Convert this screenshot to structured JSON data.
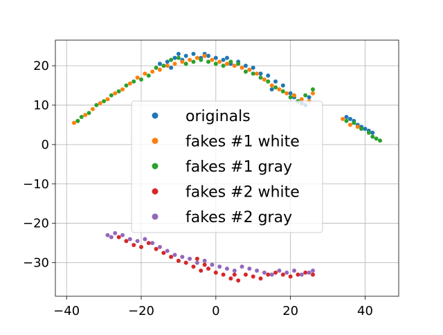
{
  "chart_data": {
    "type": "scatter",
    "title": "",
    "xlabel": "",
    "ylabel": "",
    "xlim": [
      -43,
      49
    ],
    "ylim": [
      -38.5,
      26.5
    ],
    "grid": true,
    "legend_position": "center",
    "x_ticks": [
      "−40",
      "−20",
      "0",
      "20",
      "40"
    ],
    "y_ticks": [
      "−30",
      "−20",
      "−10",
      "0",
      "10",
      "20"
    ],
    "x_tick_values": [
      -40,
      -20,
      0,
      20,
      40
    ],
    "y_tick_values": [
      -30,
      -20,
      -10,
      0,
      10,
      20
    ],
    "series": [
      {
        "name": "originals",
        "color": "#1f77b4",
        "points": [
          [
            -15,
            20.5
          ],
          [
            -13,
            21
          ],
          [
            -11,
            22
          ],
          [
            -10,
            23
          ],
          [
            -8,
            22.5
          ],
          [
            -6,
            23
          ],
          [
            -4,
            22
          ],
          [
            -2,
            22.5
          ],
          [
            0,
            22
          ],
          [
            2,
            21.5
          ],
          [
            4,
            20.5
          ],
          [
            6,
            21
          ],
          [
            8,
            20
          ],
          [
            10,
            19.5
          ],
          [
            12,
            18
          ],
          [
            14,
            17.5
          ],
          [
            16,
            16
          ],
          [
            18,
            15
          ],
          [
            20,
            13
          ],
          [
            22,
            11
          ],
          [
            24,
            10
          ],
          [
            25,
            12
          ],
          [
            -9,
            21.5
          ],
          [
            -3,
            23
          ],
          [
            3,
            22
          ],
          [
            9,
            19
          ],
          [
            15,
            14
          ],
          [
            21,
            12
          ],
          [
            23,
            10.5
          ],
          [
            -12,
            19.5
          ],
          [
            35,
            7
          ],
          [
            36,
            6.5
          ],
          [
            37,
            6
          ],
          [
            38,
            5
          ],
          [
            39,
            4.5
          ],
          [
            40,
            4
          ],
          [
            41,
            3.5
          ],
          [
            42,
            3
          ]
        ]
      },
      {
        "name": "fakes #1 white",
        "color": "#ff7f0e",
        "points": [
          [
            -38,
            5.5
          ],
          [
            -37,
            6
          ],
          [
            -35,
            7.5
          ],
          [
            -33,
            9
          ],
          [
            -31,
            10.5
          ],
          [
            -29,
            11.5
          ],
          [
            -27,
            13
          ],
          [
            -25,
            14
          ],
          [
            -23,
            15.5
          ],
          [
            -21,
            17
          ],
          [
            -19,
            18
          ],
          [
            -17,
            18.5
          ],
          [
            -15,
            19
          ],
          [
            -13,
            20
          ],
          [
            -11,
            20.5
          ],
          [
            -9,
            21
          ],
          [
            -7,
            21.5
          ],
          [
            -5,
            22
          ],
          [
            -3,
            22.5
          ],
          [
            -1,
            21.5
          ],
          [
            1,
            21
          ],
          [
            3,
            20.5
          ],
          [
            5,
            20
          ],
          [
            7,
            19.5
          ],
          [
            9,
            19
          ],
          [
            11,
            18
          ],
          [
            13,
            16.5
          ],
          [
            15,
            15
          ],
          [
            17,
            14
          ],
          [
            19,
            13
          ],
          [
            21,
            12.5
          ],
          [
            23,
            11.5
          ],
          [
            25,
            11
          ],
          [
            26,
            13
          ],
          [
            34,
            6.5
          ],
          [
            36,
            5
          ],
          [
            38,
            4.5
          ]
        ]
      },
      {
        "name": "fakes #1 gray",
        "color": "#2ca02c",
        "points": [
          [
            -37,
            6
          ],
          [
            -36,
            7
          ],
          [
            -34,
            8
          ],
          [
            -32,
            10
          ],
          [
            -30,
            11
          ],
          [
            -28,
            12.5
          ],
          [
            -26,
            13.5
          ],
          [
            -24,
            15
          ],
          [
            -22,
            16
          ],
          [
            -20,
            16.5
          ],
          [
            -18,
            17.5
          ],
          [
            -16,
            19.5
          ],
          [
            -14,
            20
          ],
          [
            -12,
            21.5
          ],
          [
            -10,
            22
          ],
          [
            -8,
            20.5
          ],
          [
            -6,
            21
          ],
          [
            -4,
            21.5
          ],
          [
            -2,
            21
          ],
          [
            0,
            20.5
          ],
          [
            2,
            20
          ],
          [
            4,
            21
          ],
          [
            6,
            20.5
          ],
          [
            8,
            18.5
          ],
          [
            10,
            18
          ],
          [
            12,
            17
          ],
          [
            14,
            16
          ],
          [
            16,
            14.5
          ],
          [
            18,
            13.5
          ],
          [
            20,
            12
          ],
          [
            22,
            11
          ],
          [
            24,
            12.5
          ],
          [
            26,
            14
          ],
          [
            35,
            6
          ],
          [
            37,
            5.5
          ],
          [
            39,
            4
          ],
          [
            41,
            3
          ],
          [
            42,
            2
          ],
          [
            43,
            1.5
          ],
          [
            44,
            1
          ]
        ]
      },
      {
        "name": "fakes #2 white",
        "color": "#d62728",
        "points": [
          [
            -26,
            -23.5
          ],
          [
            -24,
            -24.5
          ],
          [
            -22,
            -25.5
          ],
          [
            -20,
            -26
          ],
          [
            -18,
            -25
          ],
          [
            -16,
            -26.5
          ],
          [
            -14,
            -27.5
          ],
          [
            -12,
            -28.5
          ],
          [
            -10,
            -29.5
          ],
          [
            -8,
            -30
          ],
          [
            -6,
            -31
          ],
          [
            -4,
            -32
          ],
          [
            -2,
            -31.5
          ],
          [
            0,
            -32.5
          ],
          [
            2,
            -33
          ],
          [
            4,
            -34
          ],
          [
            6,
            -34.5
          ],
          [
            8,
            -33
          ],
          [
            10,
            -33.5
          ],
          [
            12,
            -34
          ],
          [
            14,
            -33
          ],
          [
            16,
            -32.5
          ],
          [
            18,
            -33
          ],
          [
            20,
            -33.5
          ],
          [
            22,
            -33
          ],
          [
            24,
            -32.5
          ],
          [
            26,
            -33
          ],
          [
            -5,
            -29
          ],
          [
            -3,
            -30.5
          ],
          [
            5,
            -33
          ]
        ]
      },
      {
        "name": "fakes #2 gray",
        "color": "#9467bd",
        "points": [
          [
            -29,
            -23
          ],
          [
            -28,
            -23.5
          ],
          [
            -27,
            -22.5
          ],
          [
            -25,
            -23
          ],
          [
            -23,
            -24
          ],
          [
            -21,
            -24.5
          ],
          [
            -19,
            -24
          ],
          [
            -17,
            -25
          ],
          [
            -15,
            -26
          ],
          [
            -13,
            -27
          ],
          [
            -11,
            -28
          ],
          [
            -9,
            -28.5
          ],
          [
            -7,
            -29
          ],
          [
            -5,
            -30
          ],
          [
            -3,
            -29.5
          ],
          [
            -1,
            -30.5
          ],
          [
            1,
            -31
          ],
          [
            3,
            -31.5
          ],
          [
            5,
            -32
          ],
          [
            7,
            -31
          ],
          [
            9,
            -31.5
          ],
          [
            11,
            -32
          ],
          [
            13,
            -32.5
          ],
          [
            15,
            -33
          ],
          [
            17,
            -32
          ],
          [
            19,
            -32.5
          ],
          [
            21,
            -32
          ],
          [
            23,
            -33
          ],
          [
            25,
            -32.5
          ],
          [
            26,
            -32
          ]
        ]
      }
    ]
  }
}
